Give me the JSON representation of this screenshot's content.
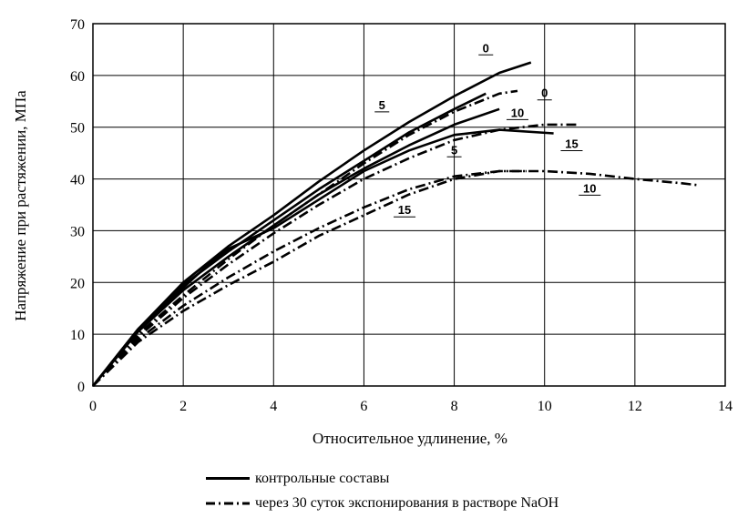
{
  "chart_data": {
    "type": "line",
    "xlabel": "Относительное удлинение, %",
    "ylabel": "Напряжение при растяжении, МПа",
    "xlim": [
      0,
      14
    ],
    "ylim": [
      0,
      70
    ],
    "x_ticks": [
      "0",
      "2",
      "4",
      "6",
      "8",
      "10",
      "12",
      "14"
    ],
    "y_ticks": [
      "0",
      "10",
      "20",
      "30",
      "40",
      "50",
      "60",
      "70"
    ],
    "grid": true,
    "legend_position": "bottom",
    "legend": [
      {
        "label": "контрольные составы",
        "style": "solid"
      },
      {
        "label": "через 30 суток экспонирования в растворе NaOH",
        "style": "dash-dot"
      }
    ],
    "series": [
      {
        "label": "0",
        "style": "solid",
        "points": [
          [
            0,
            0
          ],
          [
            1,
            11
          ],
          [
            2,
            20
          ],
          [
            3,
            27
          ],
          [
            4,
            33
          ],
          [
            5,
            39.5
          ],
          [
            6,
            45.5
          ],
          [
            7,
            51
          ],
          [
            8,
            56
          ],
          [
            9,
            60.5
          ],
          [
            9.7,
            62.5
          ]
        ]
      },
      {
        "label": "5",
        "style": "solid",
        "points": [
          [
            0,
            0
          ],
          [
            1,
            11
          ],
          [
            2,
            19.5
          ],
          [
            3,
            26
          ],
          [
            4,
            32
          ],
          [
            5,
            38
          ],
          [
            6,
            43.5
          ],
          [
            7,
            49
          ],
          [
            8,
            53.5
          ],
          [
            8.7,
            56.5
          ]
        ]
      },
      {
        "label": "10",
        "style": "solid",
        "points": [
          [
            0,
            0
          ],
          [
            1,
            10.5
          ],
          [
            2,
            18.5
          ],
          [
            3,
            25
          ],
          [
            4,
            31
          ],
          [
            5,
            37
          ],
          [
            6,
            42
          ],
          [
            7,
            46.5
          ],
          [
            8,
            50.5
          ],
          [
            9,
            53.5
          ]
        ]
      },
      {
        "label": "15",
        "style": "solid",
        "points": [
          [
            0,
            0
          ],
          [
            1,
            11
          ],
          [
            2,
            19
          ],
          [
            2.5,
            23
          ],
          [
            3,
            26.5
          ],
          [
            4,
            30.5
          ],
          [
            5,
            36
          ],
          [
            6,
            41.5
          ],
          [
            7,
            45.5
          ],
          [
            8,
            48.5
          ],
          [
            9,
            49.5
          ],
          [
            10.2,
            48.8
          ]
        ]
      },
      {
        "label": "0",
        "style": "dash-dot",
        "points": [
          [
            0,
            0
          ],
          [
            1,
            10
          ],
          [
            2,
            17.5
          ],
          [
            3,
            24.5
          ],
          [
            4,
            31
          ],
          [
            5,
            37
          ],
          [
            6,
            43
          ],
          [
            7,
            48.5
          ],
          [
            8,
            53
          ],
          [
            9,
            56.5
          ],
          [
            9.4,
            57
          ]
        ]
      },
      {
        "label": "5",
        "style": "dash-dot",
        "points": [
          [
            0,
            0
          ],
          [
            1,
            9.5
          ],
          [
            2,
            17
          ],
          [
            3,
            23.5
          ],
          [
            4,
            29.5
          ],
          [
            5,
            35
          ],
          [
            6,
            40
          ],
          [
            7,
            44
          ],
          [
            8,
            47.5
          ],
          [
            9,
            49.5
          ],
          [
            10,
            50.5
          ],
          [
            10.7,
            50.5
          ]
        ]
      },
      {
        "label": "10",
        "style": "dash-dot",
        "points": [
          [
            0,
            0
          ],
          [
            1,
            9
          ],
          [
            2,
            15.5
          ],
          [
            3,
            21
          ],
          [
            4,
            26
          ],
          [
            5,
            30.5
          ],
          [
            6,
            34.5
          ],
          [
            7,
            38
          ],
          [
            8,
            40.5
          ],
          [
            9,
            41.5
          ],
          [
            10,
            41.5
          ],
          [
            11,
            41
          ],
          [
            12,
            40
          ],
          [
            13,
            39.2
          ],
          [
            13.4,
            38.8
          ]
        ]
      },
      {
        "label": "15",
        "style": "dash-dot",
        "points": [
          [
            0,
            0
          ],
          [
            1,
            8.5
          ],
          [
            2,
            14.5
          ],
          [
            3,
            19.5
          ],
          [
            4,
            24
          ],
          [
            5,
            29
          ],
          [
            6,
            33
          ],
          [
            7,
            37
          ],
          [
            8,
            40
          ],
          [
            9,
            41.5
          ],
          [
            9.6,
            41.5
          ]
        ]
      }
    ],
    "annotations": [
      {
        "text": "0",
        "x": 8.7,
        "y": 64.5
      },
      {
        "text": "0",
        "x": 10.0,
        "y": 55.8
      },
      {
        "text": "5",
        "x": 6.4,
        "y": 53.5
      },
      {
        "text": "10",
        "x": 9.4,
        "y": 52.0
      },
      {
        "text": "15",
        "x": 10.6,
        "y": 46.0
      },
      {
        "text": "5",
        "x": 8.0,
        "y": 44.8
      },
      {
        "text": "10",
        "x": 11.0,
        "y": 37.4
      },
      {
        "text": "15",
        "x": 6.9,
        "y": 33.2
      }
    ]
  }
}
